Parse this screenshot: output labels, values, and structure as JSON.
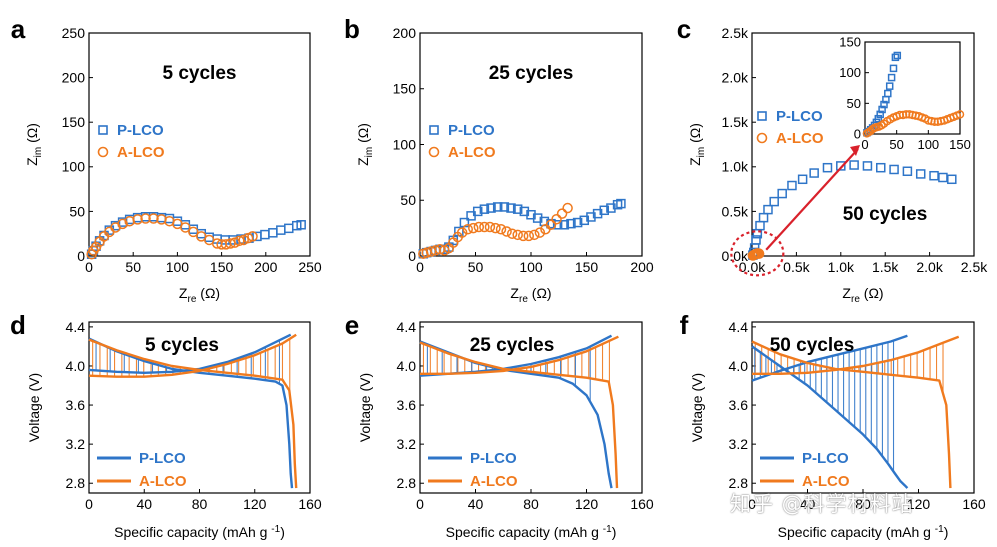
{
  "colors": {
    "p_lco": "#2e75c8",
    "a_lco": "#f07a1e",
    "arrow": "#d9212b",
    "axis": "#000000"
  },
  "legend": {
    "p_lco": "P-LCO",
    "a_lco": "A-LCO"
  },
  "watermark": "知乎 @科学材料站",
  "chart_data": [
    {
      "panel": "a",
      "type": "scatter",
      "annotation": "5 cycles",
      "xlabel": "Z_re (Ω)",
      "ylabel": "Z_im (Ω)",
      "xlim": [
        0,
        250
      ],
      "ylim": [
        0,
        250
      ],
      "xticks": [
        "0",
        "50",
        "100",
        "150",
        "200",
        "250"
      ],
      "yticks": [
        "0",
        "50",
        "100",
        "150",
        "200",
        "250"
      ],
      "series": [
        {
          "name": "P-LCO",
          "marker": "square",
          "x": [
            3,
            5,
            8,
            12,
            17,
            23,
            30,
            38,
            46,
            55,
            64,
            73,
            82,
            91,
            100,
            109,
            118,
            127,
            136,
            145,
            154,
            163,
            172,
            181,
            190,
            199,
            208,
            217,
            226,
            235,
            240
          ],
          "y": [
            2,
            6,
            11,
            17,
            23,
            29,
            34,
            38,
            41,
            43,
            44,
            44,
            43,
            42,
            39,
            35,
            30,
            25,
            21,
            19,
            18,
            18,
            19,
            20,
            22,
            24,
            26,
            29,
            31,
            34,
            35
          ]
        },
        {
          "name": "A-LCO",
          "marker": "circle",
          "x": [
            3,
            5,
            8,
            12,
            17,
            23,
            30,
            38,
            46,
            55,
            64,
            73,
            82,
            91,
            100,
            109,
            118,
            127,
            136,
            145,
            150,
            155,
            160,
            165,
            170,
            175,
            180,
            185
          ],
          "y": [
            2,
            6,
            10,
            16,
            22,
            27,
            32,
            36,
            39,
            41,
            42,
            42,
            41,
            39,
            36,
            32,
            27,
            22,
            18,
            14,
            13,
            13,
            14,
            15,
            17,
            18,
            20,
            22
          ]
        }
      ]
    },
    {
      "panel": "b",
      "type": "scatter",
      "annotation": "25 cycles",
      "xlabel": "Z_re (Ω)",
      "ylabel": "Z_im (Ω)",
      "xlim": [
        0,
        200
      ],
      "ylim": [
        0,
        200
      ],
      "xticks": [
        "0",
        "50",
        "100",
        "150",
        "200"
      ],
      "yticks": [
        "0",
        "50",
        "100",
        "150",
        "200"
      ],
      "series": [
        {
          "name": "P-LCO",
          "marker": "square",
          "x": [
            3,
            6,
            10,
            14,
            18,
            22,
            26,
            30,
            35,
            40,
            46,
            52,
            58,
            64,
            70,
            76,
            82,
            88,
            94,
            100,
            106,
            112,
            118,
            124,
            130,
            136,
            142,
            148,
            154,
            160,
            166,
            172,
            178,
            181
          ],
          "y": [
            2,
            3,
            4,
            5,
            6,
            6,
            8,
            14,
            22,
            30,
            36,
            40,
            42,
            43,
            44,
            44,
            43,
            42,
            40,
            37,
            34,
            31,
            29,
            28,
            28,
            29,
            30,
            32,
            35,
            38,
            41,
            43,
            46,
            47
          ]
        },
        {
          "name": "A-LCO",
          "marker": "circle",
          "x": [
            3,
            6,
            10,
            14,
            18,
            22,
            26,
            30,
            34,
            38,
            43,
            48,
            53,
            58,
            63,
            68,
            73,
            78,
            83,
            88,
            93,
            98,
            103,
            108,
            113,
            118,
            123,
            128,
            133
          ],
          "y": [
            2,
            3,
            4,
            5,
            6,
            5,
            7,
            12,
            17,
            21,
            24,
            25,
            26,
            26,
            26,
            25,
            24,
            22,
            20,
            19,
            18,
            18,
            19,
            21,
            24,
            28,
            33,
            38,
            43
          ]
        }
      ]
    },
    {
      "panel": "c",
      "type": "scatter",
      "annotation": "50 cycles",
      "xlabel": "Z_re (Ω)",
      "ylabel": "Z_im (Ω)",
      "xlim": [
        0,
        2500
      ],
      "ylim": [
        0,
        2500
      ],
      "xticks": [
        "0.0k",
        "0.5k",
        "1.0k",
        "1.5k",
        "2.0k",
        "2.5k"
      ],
      "yticks": [
        "0.0k",
        "0.5k",
        "1.0k",
        "1.5k",
        "2.0k",
        "2.5k"
      ],
      "series": [
        {
          "name": "P-LCO",
          "marker": "square",
          "x": [
            10,
            20,
            30,
            45,
            60,
            90,
            130,
            180,
            250,
            340,
            450,
            570,
            700,
            850,
            1000,
            1150,
            1300,
            1450,
            1600,
            1750,
            1900,
            2050,
            2150,
            2250
          ],
          "y": [
            10,
            40,
            90,
            180,
            250,
            340,
            430,
            520,
            610,
            700,
            790,
            860,
            930,
            990,
            1010,
            1020,
            1010,
            990,
            970,
            950,
            920,
            900,
            880,
            860
          ]
        },
        {
          "name": "A-LCO",
          "marker": "circle",
          "x": [
            10,
            20,
            30,
            40,
            50,
            60,
            70,
            80
          ],
          "y": [
            5,
            10,
            15,
            20,
            25,
            30,
            28,
            26
          ]
        }
      ],
      "inset": {
        "xlim": [
          0,
          150
        ],
        "ylim": [
          0,
          150
        ],
        "xticks": [
          "0",
          "50",
          "100",
          "150"
        ],
        "yticks": [
          "0",
          "50",
          "100",
          "150"
        ],
        "series": [
          {
            "name": "P-LCO",
            "marker": "square",
            "x": [
              3,
              6,
              9,
              12,
              15,
              18,
              21,
              24,
              27,
              30,
              33,
              36,
              39,
              42,
              45,
              48,
              51
            ],
            "y": [
              2,
              4,
              7,
              10,
              14,
              19,
              25,
              32,
              40,
              48,
              56,
              66,
              78,
              92,
              107,
              125,
              128
            ]
          },
          {
            "name": "A-LCO",
            "marker": "circle",
            "x": [
              3,
              6,
              9,
              12,
              15,
              18,
              22,
              26,
              30,
              35,
              40,
              45,
              50,
              55,
              60,
              65,
              70,
              75,
              80,
              85,
              90,
              95,
              100,
              105,
              110,
              115,
              120,
              125,
              130,
              135,
              140,
              145,
              150
            ],
            "y": [
              1,
              3,
              5,
              8,
              10,
              11,
              12,
              14,
              17,
              21,
              24,
              27,
              29,
              31,
              31,
              32,
              32,
              31,
              30,
              29,
              27,
              25,
              22,
              21,
              20,
              20,
              21,
              22,
              24,
              26,
              28,
              30,
              32
            ]
          }
        ]
      }
    },
    {
      "panel": "d",
      "type": "line",
      "annotation": "5 cycles",
      "xlabel": "Specific capacity (mAh g⁻¹)",
      "ylabel": "Voltage (V)",
      "xlim": [
        0,
        160
      ],
      "ylim": [
        2.7,
        4.45
      ],
      "xticks": [
        "0",
        "40",
        "80",
        "120",
        "160"
      ],
      "yticks": [
        "2.8",
        "3.2",
        "3.6",
        "4.0",
        "4.4"
      ],
      "series": [
        {
          "name": "P-LCO charge",
          "x": [
            0,
            20,
            40,
            60,
            80,
            100,
            120,
            146
          ],
          "y": [
            3.96,
            3.94,
            3.93,
            3.94,
            3.97,
            4.04,
            4.14,
            4.32
          ]
        },
        {
          "name": "P-LCO discharge",
          "x": [
            0,
            20,
            40,
            60,
            80,
            100,
            120,
            135,
            140,
            143,
            145,
            146,
            147
          ],
          "y": [
            4.28,
            4.15,
            4.05,
            3.97,
            3.93,
            3.9,
            3.87,
            3.84,
            3.8,
            3.6,
            3.2,
            2.9,
            2.75
          ]
        },
        {
          "name": "A-LCO charge",
          "x": [
            0,
            20,
            40,
            60,
            80,
            100,
            120,
            140,
            150
          ],
          "y": [
            3.9,
            3.89,
            3.89,
            3.91,
            3.95,
            4.02,
            4.11,
            4.23,
            4.32
          ]
        },
        {
          "name": "A-LCO discharge",
          "x": [
            0,
            20,
            40,
            60,
            80,
            100,
            120,
            140,
            145,
            148,
            149,
            150
          ],
          "y": [
            4.27,
            4.16,
            4.07,
            4.0,
            3.96,
            3.93,
            3.9,
            3.86,
            3.75,
            3.4,
            3.0,
            2.75
          ]
        }
      ]
    },
    {
      "panel": "e",
      "type": "line",
      "annotation": "25 cycles",
      "xlabel": "Specific capacity (mAh g⁻¹)",
      "ylabel": "Voltage (V)",
      "xlim": [
        0,
        160
      ],
      "ylim": [
        2.7,
        4.45
      ],
      "xticks": [
        "0",
        "40",
        "80",
        "120",
        "160"
      ],
      "yticks": [
        "2.8",
        "3.2",
        "3.6",
        "4.0",
        "4.4"
      ],
      "series": [
        {
          "name": "P-LCO charge",
          "x": [
            0,
            20,
            40,
            60,
            80,
            100,
            120,
            138
          ],
          "y": [
            3.9,
            3.92,
            3.94,
            3.97,
            4.02,
            4.09,
            4.18,
            4.31
          ]
        },
        {
          "name": "P-LCO discharge",
          "x": [
            0,
            20,
            40,
            60,
            80,
            100,
            110,
            120,
            128,
            133,
            136,
            138
          ],
          "y": [
            4.25,
            4.14,
            4.03,
            3.96,
            3.92,
            3.88,
            3.82,
            3.7,
            3.5,
            3.2,
            2.9,
            2.75
          ]
        },
        {
          "name": "A-LCO charge",
          "x": [
            0,
            20,
            40,
            60,
            80,
            100,
            120,
            143
          ],
          "y": [
            3.92,
            3.92,
            3.93,
            3.95,
            3.99,
            4.06,
            4.15,
            4.3
          ]
        },
        {
          "name": "A-LCO discharge",
          "x": [
            0,
            20,
            40,
            60,
            80,
            100,
            120,
            136,
            139,
            141,
            142
          ],
          "y": [
            4.24,
            4.13,
            4.04,
            3.97,
            3.94,
            3.91,
            3.88,
            3.84,
            3.6,
            3.1,
            2.75
          ]
        }
      ]
    },
    {
      "panel": "f",
      "type": "line",
      "annotation": "50 cycles",
      "xlabel": "Specific capacity (mAh g⁻¹)",
      "ylabel": "Voltage (V)",
      "xlim": [
        0,
        160
      ],
      "ylim": [
        2.7,
        4.45
      ],
      "xticks": [
        "0",
        "40",
        "80",
        "120",
        "160"
      ],
      "yticks": [
        "2.8",
        "3.2",
        "3.6",
        "4.0",
        "4.4"
      ],
      "series": [
        {
          "name": "P-LCO charge",
          "x": [
            0,
            20,
            40,
            60,
            80,
            100,
            112
          ],
          "y": [
            3.85,
            3.95,
            4.04,
            4.11,
            4.18,
            4.25,
            4.31
          ]
        },
        {
          "name": "P-LCO discharge",
          "x": [
            0,
            10,
            20,
            40,
            60,
            80,
            90,
            98,
            103,
            107,
            110,
            112
          ],
          "y": [
            4.2,
            4.1,
            4.0,
            3.8,
            3.55,
            3.3,
            3.15,
            3.0,
            2.9,
            2.82,
            2.78,
            2.75
          ]
        },
        {
          "name": "A-LCO charge",
          "x": [
            0,
            20,
            40,
            60,
            80,
            100,
            120,
            140,
            149
          ],
          "y": [
            3.92,
            3.92,
            3.93,
            3.96,
            4.0,
            4.06,
            4.14,
            4.25,
            4.3
          ]
        },
        {
          "name": "A-LCO discharge",
          "x": [
            0,
            20,
            40,
            60,
            80,
            100,
            120,
            135,
            140,
            142,
            143
          ],
          "y": [
            4.25,
            4.12,
            4.03,
            3.97,
            3.94,
            3.91,
            3.88,
            3.85,
            3.6,
            3.1,
            2.75
          ]
        }
      ]
    }
  ]
}
